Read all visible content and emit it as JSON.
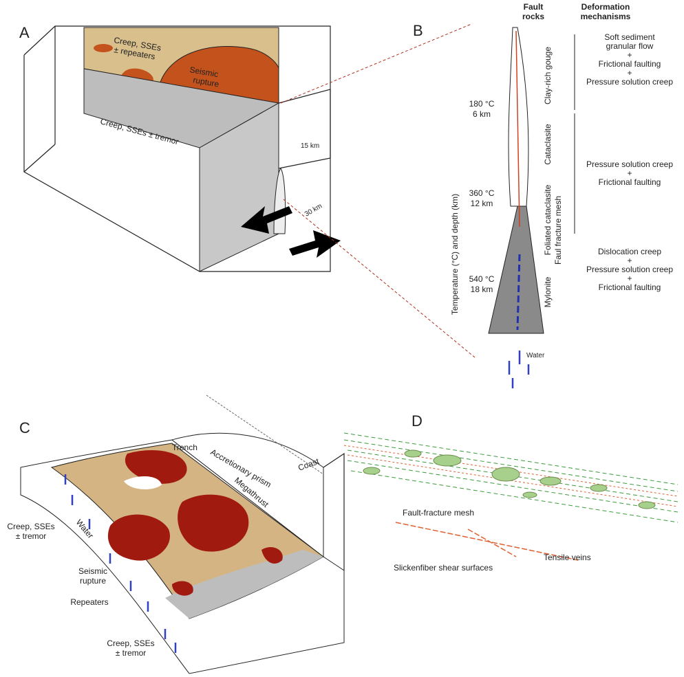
{
  "panel_a": {
    "label": "A",
    "creep_repeaters": [
      "Creep, SSEs",
      "± repeaters"
    ],
    "seismic_rupture": [
      "Seismic",
      "rupture"
    ],
    "creep_tremor": "Creep, SSEs ± tremor",
    "depth_15": "15 km",
    "depth_30": "30 km"
  },
  "panel_b": {
    "label": "B",
    "header_rocks": [
      "Fault",
      "rocks"
    ],
    "header_mechanisms": [
      "Deformation",
      "mechanisms"
    ],
    "axis_label": "Temperature (°C) and depth (km)",
    "depths": [
      [
        "180 °C",
        "6 km"
      ],
      [
        "360 °C",
        "12 km"
      ],
      [
        "540 °C",
        "18 km"
      ]
    ],
    "rocks": [
      "Clay-rich gouge",
      "Cataclasite",
      "Foliated cataclasite",
      "Faul fracture mesh",
      "Mylonite"
    ],
    "mechanisms_1": [
      "Soft sediment",
      "granular flow",
      "+",
      "Frictional faulting",
      "+",
      "Pressure solution creep"
    ],
    "mechanisms_2": [
      "Pressure solution creep",
      "+",
      "Frictional faulting"
    ],
    "mechanisms_3": [
      "Dislocation creep",
      "+",
      "Pressure solution creep",
      "+",
      "Frictional faulting"
    ],
    "water": "Water"
  },
  "panel_c": {
    "label": "C",
    "trench": "Trench",
    "prism": "Accretionary prism",
    "megathrust": "Megathrust",
    "coast": "Coast",
    "creep_upper": [
      "Creep, SSEs",
      "± tremor"
    ],
    "water": "Water",
    "seismic_rupture": [
      "Seismic",
      "rupture"
    ],
    "repeaters": "Repeaters",
    "creep_lower": [
      "Creep, SSEs",
      "± tremor"
    ]
  },
  "panel_d": {
    "label": "D",
    "mesh": "Fault-fracture mesh",
    "veins": "Tensile veins",
    "slickenfiber": "Slickenfiber shear surfaces"
  }
}
